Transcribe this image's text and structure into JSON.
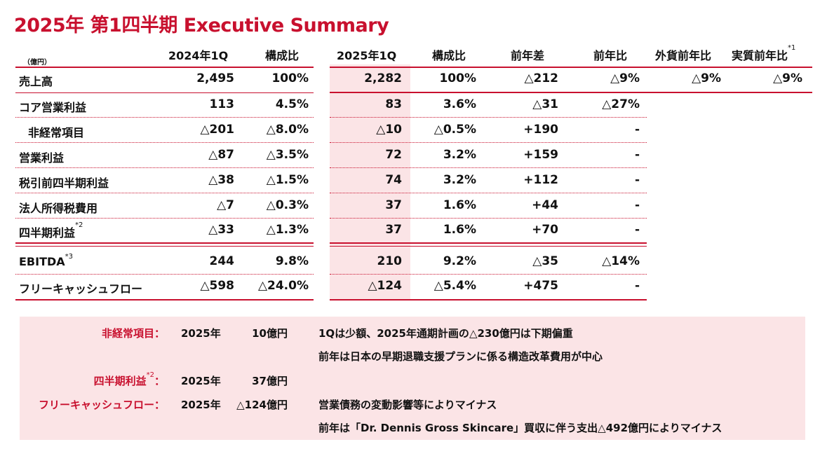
{
  "title": "2025年 第1四半期 Executive Summary",
  "unit": "（億円）",
  "headers": {
    "q2024": "2024年1Q",
    "ratio2024": "構成比",
    "q2025": "2025年1Q",
    "ratio2025": "構成比",
    "yoy_diff": "前年差",
    "yoy_ratio": "前年比",
    "fx_yoy": "外貨前年比",
    "real_yoy": "実質前年比",
    "real_yoy_note": "*1"
  },
  "rows": [
    {
      "label": "売上高",
      "note": "",
      "v2024": "2,495",
      "r2024": "100%",
      "v2025": "2,282",
      "r2025": "100%",
      "diff": "△212",
      "yoy": "△9%",
      "fx": "△9%",
      "real": "△9%"
    },
    {
      "label": "コア営業利益",
      "note": "",
      "v2024": "113",
      "r2024": "4.5%",
      "v2025": "83",
      "r2025": "3.6%",
      "diff": "△31",
      "yoy": "△27%",
      "fx": "",
      "real": ""
    },
    {
      "label": "非経常項目",
      "note": "",
      "v2024": "△201",
      "r2024": "△8.0%",
      "v2025": "△10",
      "r2025": "△0.5%",
      "diff": "+190",
      "yoy": "-",
      "fx": "",
      "real": ""
    },
    {
      "label": "営業利益",
      "note": "",
      "v2024": "△87",
      "r2024": "△3.5%",
      "v2025": "72",
      "r2025": "3.2%",
      "diff": "+159",
      "yoy": "-",
      "fx": "",
      "real": ""
    },
    {
      "label": "税引前四半期利益",
      "note": "",
      "v2024": "△38",
      "r2024": "△1.5%",
      "v2025": "74",
      "r2025": "3.2%",
      "diff": "+112",
      "yoy": "-",
      "fx": "",
      "real": ""
    },
    {
      "label": "法人所得税費用",
      "note": "",
      "v2024": "△7",
      "r2024": "△0.3%",
      "v2025": "37",
      "r2025": "1.6%",
      "diff": "+44",
      "yoy": "-",
      "fx": "",
      "real": ""
    },
    {
      "label": "四半期利益",
      "note": "*2",
      "v2024": "△33",
      "r2024": "△1.3%",
      "v2025": "37",
      "r2025": "1.6%",
      "diff": "+70",
      "yoy": "-",
      "fx": "",
      "real": ""
    },
    {
      "label": "EBITDA",
      "note": "*3",
      "v2024": "244",
      "r2024": "9.8%",
      "v2025": "210",
      "r2025": "9.2%",
      "diff": "△35",
      "yoy": "△14%",
      "fx": "",
      "real": ""
    },
    {
      "label": "フリーキャッシュフロー",
      "note": "",
      "v2024": "△598",
      "r2024": "△24.0%",
      "v2025": "△124",
      "r2025": "△5.4%",
      "diff": "+475",
      "yoy": "-",
      "fx": "",
      "real": ""
    }
  ],
  "notes": [
    {
      "label": "非経常項目：",
      "label_note": "",
      "year": "2025年",
      "amount": "10億円",
      "lines": [
        "1Qは少額、2025年通期計画の△230億円は下期偏重",
        "前年は日本の早期退職支援プランに係る構造改革費用が中心"
      ]
    },
    {
      "label": "四半期利益",
      "label_note": "*2",
      "label_tail": "：",
      "year": "2025年",
      "amount": "37億円",
      "lines": []
    },
    {
      "label": "フリーキャッシュフロー：",
      "label_note": "",
      "year": "2025年",
      "amount": "△124億円",
      "lines": [
        "営業債務の変動影響等によりマイナス",
        "前年は「Dr. Dennis Gross Skincare」買収に伴う支出△492億円によりマイナス"
      ]
    }
  ],
  "colors": {
    "accent": "#c8102e",
    "highlight": "#fbe4e6"
  }
}
